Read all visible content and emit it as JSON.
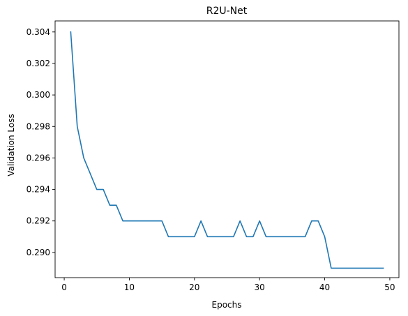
{
  "chart_data": {
    "type": "line",
    "title": "R2U-Net",
    "xlabel": "Epochs",
    "ylabel": "Validation Loss",
    "xlim": [
      -1.4,
      51.4
    ],
    "ylim": [
      0.2884,
      0.3047
    ],
    "xticks": [
      0,
      10,
      20,
      30,
      40,
      50
    ],
    "xtick_labels": [
      "0",
      "10",
      "20",
      "30",
      "40",
      "50"
    ],
    "yticks": [
      0.29,
      0.292,
      0.294,
      0.296,
      0.298,
      0.3,
      0.302,
      0.304
    ],
    "ytick_labels": [
      "0.290",
      "0.292",
      "0.294",
      "0.296",
      "0.298",
      "0.300",
      "0.302",
      "0.304"
    ],
    "grid": false,
    "series": [
      {
        "color": "#1f77b4",
        "x": [
          1,
          2,
          3,
          4,
          5,
          6,
          7,
          8,
          9,
          10,
          11,
          12,
          13,
          14,
          15,
          16,
          17,
          18,
          19,
          20,
          21,
          22,
          23,
          24,
          25,
          26,
          27,
          28,
          29,
          30,
          31,
          32,
          33,
          34,
          35,
          36,
          37,
          38,
          39,
          40,
          41,
          42,
          43,
          44,
          45,
          46,
          47,
          48,
          49
        ],
        "y": [
          0.304,
          0.298,
          0.296,
          0.295,
          0.294,
          0.294,
          0.293,
          0.293,
          0.292,
          0.292,
          0.292,
          0.292,
          0.292,
          0.292,
          0.292,
          0.291,
          0.291,
          0.291,
          0.291,
          0.291,
          0.292,
          0.291,
          0.291,
          0.291,
          0.291,
          0.291,
          0.292,
          0.291,
          0.291,
          0.292,
          0.291,
          0.291,
          0.291,
          0.291,
          0.291,
          0.291,
          0.291,
          0.292,
          0.292,
          0.291,
          0.289,
          0.289,
          0.289,
          0.289,
          0.289,
          0.289,
          0.289,
          0.289,
          0.289
        ]
      }
    ]
  }
}
